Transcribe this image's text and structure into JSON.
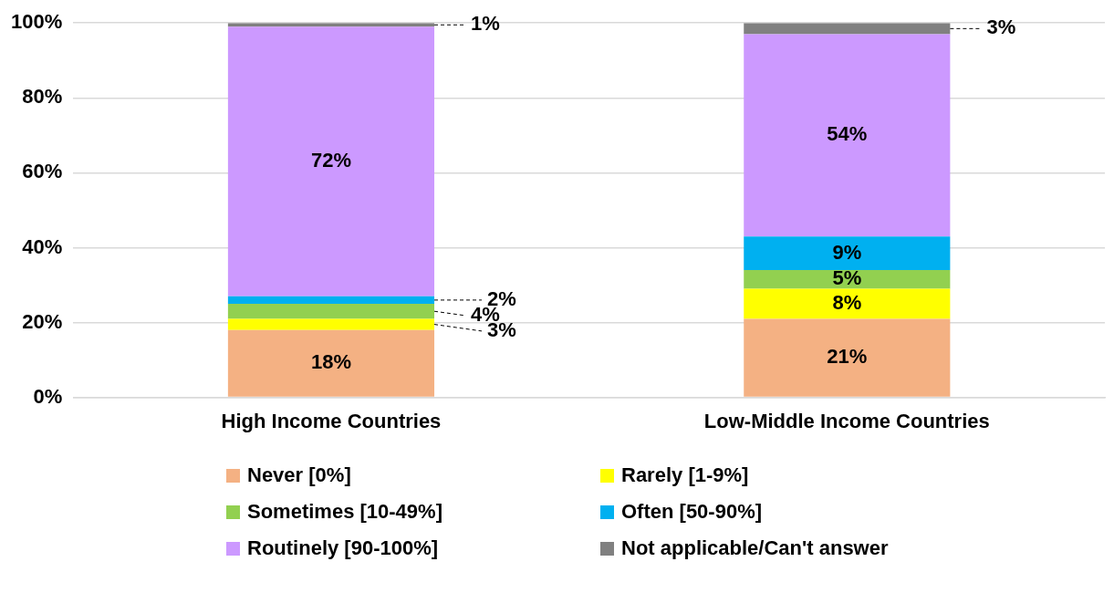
{
  "chart_data": {
    "type": "bar",
    "stacked": true,
    "categories": [
      "High Income Countries",
      "Low-Middle Income Countries"
    ],
    "series": [
      {
        "name": "Never [0%]",
        "color": "#f4b183",
        "values": [
          18,
          21
        ],
        "value_labels": [
          "18%",
          "21%"
        ]
      },
      {
        "name": "Rarely [1-9%]",
        "color": "#ffff00",
        "values": [
          3,
          8
        ],
        "value_labels": [
          "3%",
          "8%"
        ]
      },
      {
        "name": "Sometimes [10-49%]",
        "color": "#92d050",
        "values": [
          4,
          5
        ],
        "value_labels": [
          "4%",
          "5%"
        ]
      },
      {
        "name": "Often [50-90%]",
        "color": "#00b0f0",
        "values": [
          2,
          9
        ],
        "value_labels": [
          "2%",
          "9%"
        ]
      },
      {
        "name": "Routinely [90-100%]",
        "color": "#cc99ff",
        "values": [
          72,
          54
        ],
        "value_labels": [
          "72%",
          "54%"
        ]
      },
      {
        "name": "Not applicable/Can't answer",
        "color": "#808080",
        "values": [
          1,
          3
        ],
        "value_labels": [
          "1%",
          "3%"
        ]
      }
    ],
    "ylim": [
      0,
      100
    ],
    "yticks": [
      {
        "value": 0,
        "label": "0%"
      },
      {
        "value": 20,
        "label": "20%"
      },
      {
        "value": 40,
        "label": "40%"
      },
      {
        "value": 60,
        "label": "60%"
      },
      {
        "value": 80,
        "label": "80%"
      },
      {
        "value": 100,
        "label": "100%"
      }
    ],
    "grid": "y",
    "legend": "bottom"
  }
}
